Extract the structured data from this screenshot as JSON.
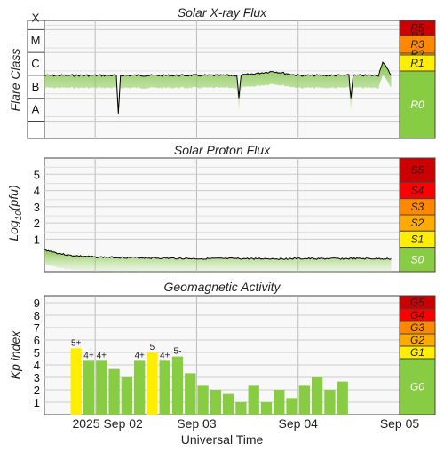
{
  "chart_data": [
    {
      "type": "line",
      "title": "Solar X-ray Flux",
      "ylabel": "Flare Class",
      "y_class_labels": [
        "X",
        "M",
        "C",
        "B",
        "A"
      ],
      "scale": [
        {
          "label": "R5",
          "color": "#cc0000"
        },
        {
          "label": "R4",
          "color": "#ff0000"
        },
        {
          "label": "R3",
          "color": "#ff8800"
        },
        {
          "label": "R2",
          "color": "#ffaa00"
        },
        {
          "label": "R1",
          "color": "#ffee00"
        },
        {
          "label": "R0",
          "color": "#88cc44"
        }
      ],
      "series": [
        {
          "x": [
            "2025-09-01 12:00",
            "2025-09-02 00:00",
            "2025-09-02 05:00",
            "2025-09-02 05:30",
            "2025-09-02 06:00",
            "2025-09-02 12:00",
            "2025-09-03 00:00",
            "2025-09-03 09:30",
            "2025-09-03 10:00",
            "2025-09-03 10:30",
            "2025-09-03 18:00",
            "2025-09-04 00:00",
            "2025-09-04 12:00",
            "2025-09-04 12:30",
            "2025-09-04 13:00",
            "2025-09-04 19:00",
            "2025-09-04 20:00",
            "2025-09-04 22:00"
          ],
          "y": [
            "C1",
            "C1",
            "C1",
            "A2",
            "C1",
            "C1",
            "C1",
            "C1",
            "B1",
            "C1",
            "C1.5",
            "C1",
            "C1",
            "B1",
            "C1",
            "C1",
            "C4",
            "C1"
          ]
        }
      ]
    },
    {
      "type": "line",
      "title": "Solar Proton Flux",
      "ylabel": "Log10(pfu)",
      "yticks": [
        "1",
        "2",
        "3",
        "4",
        "5"
      ],
      "ylim": [
        -1,
        6
      ],
      "scale": [
        {
          "label": "S5",
          "color": "#cc0000"
        },
        {
          "label": "S4",
          "color": "#ff0000"
        },
        {
          "label": "S3",
          "color": "#ff8800"
        },
        {
          "label": "S2",
          "color": "#ffaa00"
        },
        {
          "label": "S1",
          "color": "#ffee00"
        },
        {
          "label": "S0",
          "color": "#88cc44"
        }
      ],
      "series": [
        {
          "x": [
            "2025-09-01 12:00",
            "2025-09-01 15:00",
            "2025-09-01 18:00",
            "2025-09-02 00:00",
            "2025-09-02 12:00",
            "2025-09-03 00:00",
            "2025-09-03 12:00",
            "2025-09-04 00:00",
            "2025-09-04 12:00",
            "2025-09-04 22:00"
          ],
          "y": [
            0.35,
            0.15,
            0.0,
            -0.1,
            -0.15,
            -0.2,
            -0.2,
            -0.2,
            -0.2,
            -0.2
          ]
        }
      ]
    },
    {
      "type": "bar",
      "title": "Geomagnetic Activity",
      "ylabel": "Kp index",
      "xlabel": "Universal Time",
      "yticks": [
        "1",
        "2",
        "3",
        "4",
        "5",
        "6",
        "7",
        "8",
        "9"
      ],
      "ylim": [
        0,
        9
      ],
      "xticks": [
        "2025 Sep 02",
        "Sep 03",
        "Sep 04",
        "Sep 05"
      ],
      "scale": [
        {
          "label": "G5",
          "color": "#cc0000"
        },
        {
          "label": "G4",
          "color": "#ff0000"
        },
        {
          "label": "G3",
          "color": "#ff8800"
        },
        {
          "label": "G2",
          "color": "#ffaa00"
        },
        {
          "label": "G1",
          "color": "#ffee00"
        },
        {
          "label": "G0",
          "color": "#88cc44"
        }
      ],
      "values": [
        5.33,
        4.33,
        4.33,
        3.67,
        3.0,
        4.33,
        5.0,
        4.33,
        4.67,
        3.33,
        2.33,
        2.0,
        1.67,
        1.0,
        2.33,
        1.0,
        2.0,
        1.33,
        2.33,
        3.0,
        2.0,
        2.67
      ],
      "bar_labels": [
        "5+",
        "4+",
        "4+",
        "",
        "",
        "4+",
        "5",
        "4+",
        "5-",
        "",
        "",
        "",
        "",
        "",
        "",
        "",
        "",
        "",
        "",
        "",
        "",
        ""
      ],
      "bar_colors": [
        "#ffee00",
        "#88cc44",
        "#88cc44",
        "#88cc44",
        "#88cc44",
        "#88cc44",
        "#ffee00",
        "#88cc44",
        "#88cc44",
        "#88cc44",
        "#88cc44",
        "#88cc44",
        "#88cc44",
        "#88cc44",
        "#88cc44",
        "#88cc44",
        "#88cc44",
        "#88cc44",
        "#88cc44",
        "#88cc44",
        "#88cc44",
        "#88cc44"
      ]
    }
  ]
}
